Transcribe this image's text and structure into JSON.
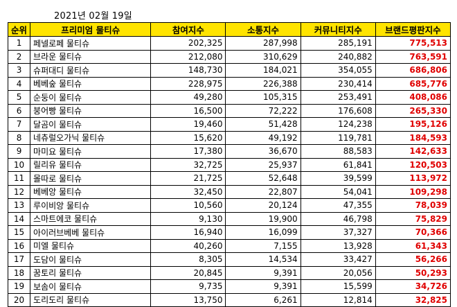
{
  "date_label": "2021년 02월 19일",
  "headers": [
    "순위",
    "프리미엄 물티슈",
    "참여지수",
    "소통지수",
    "커뮤니티지수",
    "브랜드평판지수"
  ],
  "rows": [
    {
      "rank": "1",
      "name": "페넬로페 물티슈",
      "participation": "202,325",
      "communication": "287,998",
      "community": "285,191",
      "brand": "775,513"
    },
    {
      "rank": "2",
      "name": "브라운 물티슈",
      "participation": "212,080",
      "communication": "310,629",
      "community": "240,882",
      "brand": "763,591"
    },
    {
      "rank": "3",
      "name": "슈퍼대디 물티슈",
      "participation": "148,730",
      "communication": "184,021",
      "community": "354,055",
      "brand": "686,806"
    },
    {
      "rank": "4",
      "name": "베베숲 물티슈",
      "participation": "228,975",
      "communication": "226,388",
      "community": "230,414",
      "brand": "685,776"
    },
    {
      "rank": "5",
      "name": "순둥이 물티슈",
      "participation": "49,280",
      "communication": "105,315",
      "community": "253,491",
      "brand": "408,086"
    },
    {
      "rank": "6",
      "name": "붕어빵 물티슈",
      "participation": "16,500",
      "communication": "72,222",
      "community": "176,608",
      "brand": "265,330"
    },
    {
      "rank": "7",
      "name": "달곰이 물티슈",
      "participation": "19,460",
      "communication": "51,428",
      "community": "124,238",
      "brand": "195,126"
    },
    {
      "rank": "8",
      "name": "네츄럴오가닉 물티슈",
      "participation": "15,620",
      "communication": "49,192",
      "community": "119,781",
      "brand": "184,593"
    },
    {
      "rank": "9",
      "name": "마미요 물티슈",
      "participation": "17,380",
      "communication": "36,670",
      "community": "88,583",
      "brand": "142,633"
    },
    {
      "rank": "10",
      "name": "릴리유 물티슈",
      "participation": "32,725",
      "communication": "25,937",
      "community": "61,841",
      "brand": "120,503"
    },
    {
      "rank": "11",
      "name": "몰따로 물티슈",
      "participation": "21,725",
      "communication": "52,648",
      "community": "39,599",
      "brand": "113,972"
    },
    {
      "rank": "12",
      "name": "베베앙 물티슈",
      "participation": "32,450",
      "communication": "22,807",
      "community": "54,041",
      "brand": "109,298"
    },
    {
      "rank": "13",
      "name": "루이비앙 물티슈",
      "participation": "10,560",
      "communication": "20,124",
      "community": "47,355",
      "brand": "78,039"
    },
    {
      "rank": "14",
      "name": "스마트에코 물티슈",
      "participation": "9,130",
      "communication": "19,900",
      "community": "46,798",
      "brand": "75,829"
    },
    {
      "rank": "15",
      "name": "아이러브베베 물티슈",
      "participation": "16,940",
      "communication": "16,099",
      "community": "37,327",
      "brand": "70,366"
    },
    {
      "rank": "16",
      "name": "미엘 물티슈",
      "participation": "40,260",
      "communication": "7,155",
      "community": "13,928",
      "brand": "61,343"
    },
    {
      "rank": "17",
      "name": "도담이 물티슈",
      "participation": "8,305",
      "communication": "14,534",
      "community": "33,427",
      "brand": "56,266"
    },
    {
      "rank": "18",
      "name": "꿈토리 물티슈",
      "participation": "20,845",
      "communication": "9,391",
      "community": "20,056",
      "brand": "50,293"
    },
    {
      "rank": "19",
      "name": "보솜이 물티슈",
      "participation": "9,735",
      "communication": "9,391",
      "community": "15,599",
      "brand": "34,726"
    },
    {
      "rank": "20",
      "name": "도리도리 물티슈",
      "participation": "13,750",
      "communication": "6,261",
      "community": "12,814",
      "brand": "32,825"
    }
  ],
  "colors": {
    "header_bg": "#ffe400",
    "brand_text": "#e00000"
  }
}
